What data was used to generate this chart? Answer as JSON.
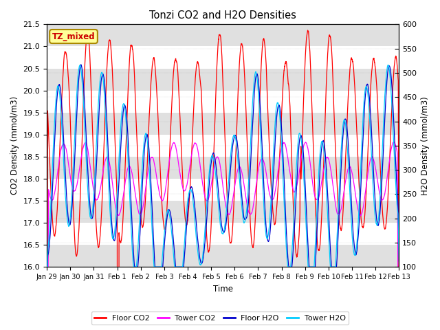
{
  "title": "Tonzi CO2 and H2O Densities",
  "xlabel": "Time",
  "ylabel_left": "CO2 Density (mmol/m3)",
  "ylabel_right": "H2O Density (mmol/m3)",
  "ylim_left": [
    16.0,
    21.5
  ],
  "ylim_right": [
    100,
    600
  ],
  "yticks_left": [
    16.0,
    16.5,
    17.0,
    17.5,
    18.0,
    18.5,
    19.0,
    19.5,
    20.0,
    20.5,
    21.0,
    21.5
  ],
  "yticks_right": [
    100,
    150,
    200,
    250,
    300,
    350,
    400,
    450,
    500,
    550,
    600
  ],
  "xtick_labels": [
    "Jan 29",
    "Jan 30",
    "Jan 31",
    "Feb 1",
    "Feb 2",
    "Feb 3",
    "Feb 4",
    "Feb 5",
    "Feb 6",
    "Feb 7",
    "Feb 8",
    "Feb 9",
    "Feb 10",
    "Feb 11",
    "Feb 12",
    "Feb 13"
  ],
  "legend_labels": [
    "Floor CO2",
    "Tower CO2",
    "Floor H2O",
    "Tower H2O"
  ],
  "colors": {
    "floor_co2": "#FF0000",
    "tower_co2": "#FF00FF",
    "floor_h2o": "#0000CC",
    "tower_h2o": "#00CCFF"
  },
  "annotation_text": "TZ_mixed",
  "annotation_bg": "#FFFF99",
  "annotation_border": "#AA8800",
  "bg_band_color": "#E0E0E0",
  "n_points": 4000,
  "days": 16,
  "seed": 42
}
